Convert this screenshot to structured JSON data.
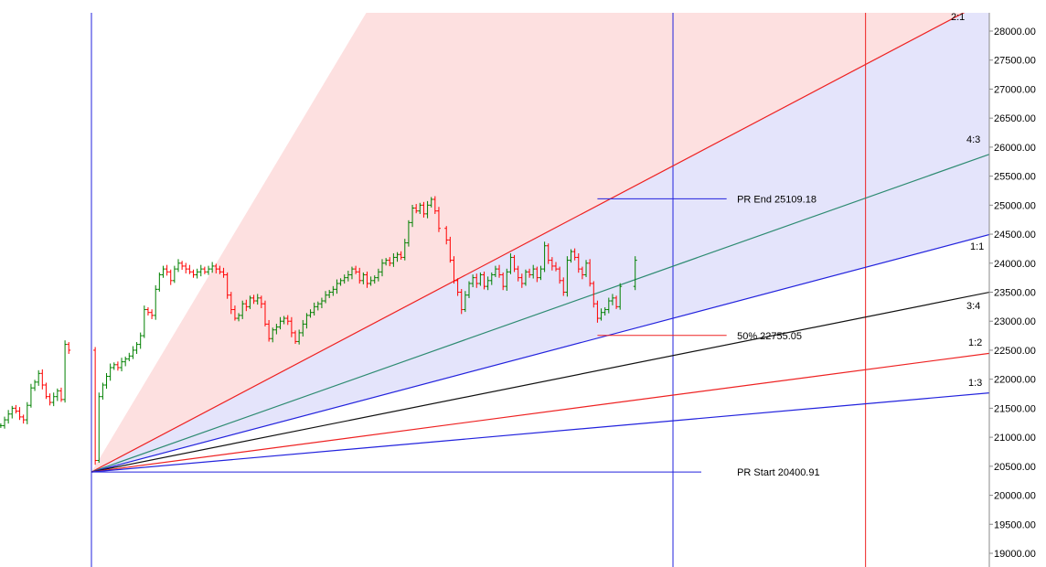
{
  "chart_data": {
    "type": "candlestick",
    "title": "",
    "xlabel": "",
    "ylabel": "",
    "ylim": [
      18850,
      28300
    ],
    "y_ticks": [
      {
        "value": 28000,
        "label": "28000.00"
      },
      {
        "value": 27500,
        "label": "27500.00"
      },
      {
        "value": 27000,
        "label": "27000.00"
      },
      {
        "value": 26500,
        "label": "26500.00"
      },
      {
        "value": 26000,
        "label": "26000.00"
      },
      {
        "value": 25500,
        "label": "25500.00"
      },
      {
        "value": 25000,
        "label": "25000.00"
      },
      {
        "value": 24500,
        "label": "24500.00"
      },
      {
        "value": 24000,
        "label": "24000.00"
      },
      {
        "value": 23500,
        "label": "23500.00"
      },
      {
        "value": 23000,
        "label": "23000.00"
      },
      {
        "value": 22500,
        "label": "22500.00"
      },
      {
        "value": 22000,
        "label": "22000.00"
      },
      {
        "value": 21500,
        "label": "21500.00"
      },
      {
        "value": 21000,
        "label": "21000.00"
      },
      {
        "value": 20500,
        "label": "20500.00"
      },
      {
        "value": 20000,
        "label": "20000.00"
      },
      {
        "value": 19500,
        "label": "19500.00"
      },
      {
        "value": 19000,
        "label": "19000.00"
      }
    ],
    "gann_fan": {
      "rays": [
        {
          "label": "2:1",
          "color": "#ee2222",
          "x0": 0,
          "y0": 20400.91,
          "x1": 232,
          "y1": 28350
        },
        {
          "label": "4:3",
          "color": "#2e8b72",
          "x0": 0,
          "y0": 20400.91,
          "x1": 244,
          "y1": 26020
        },
        {
          "label": "1:1",
          "color": "#2222dd",
          "x0": 0,
          "y0": 20400.91,
          "x1": 244,
          "y1": 24600
        },
        {
          "label": "3:4",
          "color": "#111111",
          "x0": 0,
          "y0": 20400.91,
          "x1": 244,
          "y1": 23580
        },
        {
          "label": "1:2",
          "color": "#ee2222",
          "x0": 0,
          "y0": 20400.91,
          "x1": 244,
          "y1": 22500
        },
        {
          "label": "1:3",
          "color": "#2222dd",
          "x0": 0,
          "y0": 20400.91,
          "x1": 244,
          "y1": 21800
        }
      ],
      "upper_zone_color": "#fde0e0",
      "lower_zone_color": "#e4e4fb"
    },
    "levels": [
      {
        "label": "PR End 25109.18",
        "value": 25109.18,
        "color": "#2222dd",
        "x_from": 134,
        "x_to": 170
      },
      {
        "label": "50% 22755.05",
        "value": 22755.05,
        "color": "#ee2222",
        "x_from": 134,
        "x_to": 170
      },
      {
        "label": "PR Start 20400.91",
        "value": 20400.91,
        "color": "#2222dd",
        "x_from": 0,
        "x_to": 170
      }
    ],
    "vertical_markers": [
      {
        "x": 0,
        "color": "#2222dd"
      },
      {
        "x": 154,
        "color": "#2222dd"
      },
      {
        "x": 205,
        "color": "#ee2222"
      }
    ],
    "x_range": [
      -24,
      258
    ],
    "up_color": "#008000",
    "down_color": "#ff0000",
    "series": [
      {
        "name": "",
        "bars": [
          {
            "x": -24,
            "c": 21200
          },
          {
            "x": -23,
            "c": 21300
          },
          {
            "x": -22,
            "c": 21400
          },
          {
            "x": -21,
            "c": 21500
          },
          {
            "x": -20,
            "c": 21450
          },
          {
            "x": -19,
            "c": 21350
          },
          {
            "x": -18,
            "c": 21300
          },
          {
            "x": -17,
            "c": 21550
          },
          {
            "x": -16,
            "c": 21850
          },
          {
            "x": -15,
            "c": 21950
          },
          {
            "x": -14,
            "c": 22100
          },
          {
            "x": -13,
            "c": 21900
          },
          {
            "x": -12,
            "c": 21700
          },
          {
            "x": -11,
            "c": 21600
          },
          {
            "x": -10,
            "c": 21700
          },
          {
            "x": -9,
            "c": 21800
          },
          {
            "x": -8,
            "c": 21650
          },
          {
            "x": -7,
            "c": 22600
          },
          {
            "x": -6,
            "c": 22500
          },
          {
            "x": 1,
            "c": 20600
          },
          {
            "x": 2,
            "c": 21700
          },
          {
            "x": 3,
            "c": 21900
          },
          {
            "x": 4,
            "c": 22050
          },
          {
            "x": 5,
            "c": 22200
          },
          {
            "x": 6,
            "c": 22250
          },
          {
            "x": 7,
            "c": 22200
          },
          {
            "x": 8,
            "c": 22300
          },
          {
            "x": 9,
            "c": 22350
          },
          {
            "x": 10,
            "c": 22400
          },
          {
            "x": 11,
            "c": 22500
          },
          {
            "x": 12,
            "c": 22600
          },
          {
            "x": 13,
            "c": 22750
          },
          {
            "x": 14,
            "c": 23200
          },
          {
            "x": 15,
            "c": 23150
          },
          {
            "x": 16,
            "c": 23100
          },
          {
            "x": 17,
            "c": 23550
          },
          {
            "x": 18,
            "c": 23800
          },
          {
            "x": 19,
            "c": 23900
          },
          {
            "x": 20,
            "c": 23850
          },
          {
            "x": 21,
            "c": 23700
          },
          {
            "x": 22,
            "c": 23900
          },
          {
            "x": 23,
            "c": 24000
          },
          {
            "x": 24,
            "c": 23950
          },
          {
            "x": 25,
            "c": 23900
          },
          {
            "x": 26,
            "c": 23850
          },
          {
            "x": 27,
            "c": 23800
          },
          {
            "x": 28,
            "c": 23850
          },
          {
            "x": 29,
            "c": 23900
          },
          {
            "x": 30,
            "c": 23850
          },
          {
            "x": 31,
            "c": 23900
          },
          {
            "x": 32,
            "c": 23950
          },
          {
            "x": 33,
            "c": 23900
          },
          {
            "x": 34,
            "c": 23850
          },
          {
            "x": 35,
            "c": 23800
          },
          {
            "x": 36,
            "c": 23450
          },
          {
            "x": 37,
            "c": 23200
          },
          {
            "x": 38,
            "c": 23050
          },
          {
            "x": 39,
            "c": 23100
          },
          {
            "x": 40,
            "c": 23300
          },
          {
            "x": 41,
            "c": 23250
          },
          {
            "x": 42,
            "c": 23400
          },
          {
            "x": 43,
            "c": 23350
          },
          {
            "x": 44,
            "c": 23400
          },
          {
            "x": 45,
            "c": 23300
          },
          {
            "x": 46,
            "c": 22950
          },
          {
            "x": 47,
            "c": 22700
          },
          {
            "x": 48,
            "c": 22850
          },
          {
            "x": 49,
            "c": 22900
          },
          {
            "x": 50,
            "c": 23000
          },
          {
            "x": 51,
            "c": 23050
          },
          {
            "x": 52,
            "c": 23000
          },
          {
            "x": 53,
            "c": 22800
          },
          {
            "x": 54,
            "c": 22650
          },
          {
            "x": 55,
            "c": 22800
          },
          {
            "x": 56,
            "c": 22950
          },
          {
            "x": 57,
            "c": 23100
          },
          {
            "x": 58,
            "c": 23150
          },
          {
            "x": 59,
            "c": 23250
          },
          {
            "x": 60,
            "c": 23300
          },
          {
            "x": 61,
            "c": 23350
          },
          {
            "x": 62,
            "c": 23450
          },
          {
            "x": 63,
            "c": 23500
          },
          {
            "x": 64,
            "c": 23550
          },
          {
            "x": 65,
            "c": 23650
          },
          {
            "x": 66,
            "c": 23700
          },
          {
            "x": 67,
            "c": 23750
          },
          {
            "x": 68,
            "c": 23800
          },
          {
            "x": 69,
            "c": 23900
          },
          {
            "x": 70,
            "c": 23850
          },
          {
            "x": 71,
            "c": 23700
          },
          {
            "x": 72,
            "c": 23800
          },
          {
            "x": 73,
            "c": 23650
          },
          {
            "x": 74,
            "c": 23700
          },
          {
            "x": 75,
            "c": 23750
          },
          {
            "x": 76,
            "c": 23850
          },
          {
            "x": 77,
            "c": 24000
          },
          {
            "x": 78,
            "c": 24050
          },
          {
            "x": 79,
            "c": 24000
          },
          {
            "x": 80,
            "c": 24100
          },
          {
            "x": 81,
            "c": 24150
          },
          {
            "x": 82,
            "c": 24100
          },
          {
            "x": 83,
            "c": 24350
          },
          {
            "x": 84,
            "c": 24700
          },
          {
            "x": 85,
            "c": 24950
          },
          {
            "x": 86,
            "c": 24900
          },
          {
            "x": 87,
            "c": 25000
          },
          {
            "x": 88,
            "c": 24850
          },
          {
            "x": 89,
            "c": 25000
          },
          {
            "x": 90,
            "c": 25100
          },
          {
            "x": 91,
            "c": 24900
          },
          {
            "x": 92,
            "c": 24600
          },
          {
            "x": 94,
            "c": 24400
          },
          {
            "x": 95,
            "c": 24050
          },
          {
            "x": 96,
            "c": 23700
          },
          {
            "x": 97,
            "c": 23500
          },
          {
            "x": 98,
            "c": 23200
          },
          {
            "x": 99,
            "c": 23450
          },
          {
            "x": 100,
            "c": 23650
          },
          {
            "x": 101,
            "c": 23750
          },
          {
            "x": 102,
            "c": 23650
          },
          {
            "x": 103,
            "c": 23800
          },
          {
            "x": 104,
            "c": 23600
          },
          {
            "x": 105,
            "c": 23700
          },
          {
            "x": 106,
            "c": 23800
          },
          {
            "x": 107,
            "c": 23900
          },
          {
            "x": 108,
            "c": 23800
          },
          {
            "x": 109,
            "c": 23600
          },
          {
            "x": 110,
            "c": 23850
          },
          {
            "x": 111,
            "c": 24100
          },
          {
            "x": 112,
            "c": 23900
          },
          {
            "x": 113,
            "c": 23750
          },
          {
            "x": 114,
            "c": 23650
          },
          {
            "x": 115,
            "c": 23850
          },
          {
            "x": 116,
            "c": 23800
          },
          {
            "x": 117,
            "c": 23900
          },
          {
            "x": 118,
            "c": 23750
          },
          {
            "x": 119,
            "c": 23900
          },
          {
            "x": 120,
            "c": 24300
          },
          {
            "x": 121,
            "c": 24050
          },
          {
            "x": 122,
            "c": 23950
          },
          {
            "x": 123,
            "c": 23900
          },
          {
            "x": 124,
            "c": 23700
          },
          {
            "x": 125,
            "c": 23500
          },
          {
            "x": 126,
            "c": 24050
          },
          {
            "x": 127,
            "c": 24200
          },
          {
            "x": 128,
            "c": 24100
          },
          {
            "x": 129,
            "c": 23900
          },
          {
            "x": 130,
            "c": 23800
          },
          {
            "x": 131,
            "c": 24000
          },
          {
            "x": 132,
            "c": 23650
          },
          {
            "x": 133,
            "c": 23300
          },
          {
            "x": 134,
            "c": 23050
          },
          {
            "x": 135,
            "c": 23150
          },
          {
            "x": 136,
            "c": 23200
          },
          {
            "x": 137,
            "c": 23350
          },
          {
            "x": 138,
            "c": 23400
          },
          {
            "x": 139,
            "c": 23250
          },
          {
            "x": 140,
            "c": 23600
          },
          {
            "x": 144,
            "c": 24050
          }
        ]
      }
    ]
  }
}
